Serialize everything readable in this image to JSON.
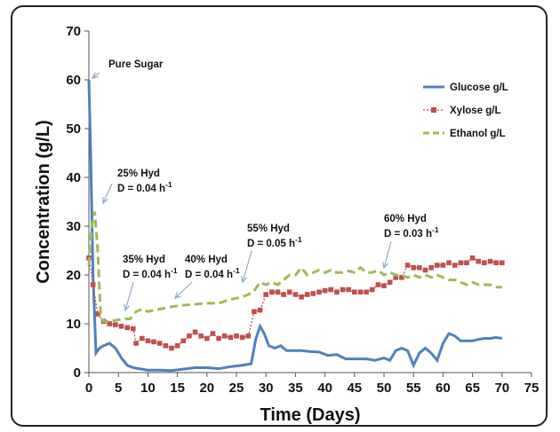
{
  "chart_data": {
    "type": "line",
    "xlabel": "Time (Days)",
    "ylabel": "Concentration (g/L)",
    "xlim": [
      0,
      75
    ],
    "ylim": [
      0,
      70
    ],
    "xticks": [
      "0",
      "5",
      "10",
      "15",
      "20",
      "25",
      "30",
      "35",
      "40",
      "45",
      "50",
      "55",
      "60",
      "65",
      "70",
      "75"
    ],
    "yticks": [
      "0",
      "10",
      "20",
      "30",
      "40",
      "50",
      "60",
      "70"
    ],
    "grid": false,
    "legend_position": "top-right",
    "series": [
      {
        "name": "Glucose g/L",
        "color": "#4f81bd",
        "style": "solid",
        "x": [
          0,
          0.3,
          0.7,
          1.2,
          1.8,
          2.5,
          3.5,
          4.5,
          5.5,
          6.5,
          7.5,
          8.5,
          10,
          12,
          14,
          16,
          18,
          20,
          22,
          24,
          26,
          27.5,
          28.3,
          29,
          29.7,
          30.5,
          31.5,
          32.5,
          33.5,
          34.5,
          36,
          37.5,
          39,
          40.5,
          42,
          43.5,
          45,
          47,
          48.5,
          50,
          51,
          52,
          53,
          54,
          55,
          56,
          57,
          58,
          59,
          60,
          61,
          62,
          63,
          64,
          65,
          66,
          67,
          68,
          69,
          70
        ],
        "y": [
          60,
          45,
          20,
          4,
          5,
          5.5,
          6,
          5,
          3,
          1.5,
          1,
          0.8,
          0.5,
          0.5,
          0.4,
          0.7,
          1,
          1,
          0.8,
          1.2,
          1.5,
          1.8,
          7,
          9.5,
          8,
          5.5,
          5,
          5.5,
          4.5,
          4.5,
          4.5,
          4.3,
          4.2,
          3.5,
          3.7,
          2.8,
          2.8,
          2.8,
          2.5,
          3,
          2.5,
          4.5,
          5,
          4.5,
          1.5,
          4,
          5,
          4,
          2.5,
          6,
          8,
          7.5,
          6.5,
          6.5,
          6.5,
          6.8,
          7,
          7,
          7.2,
          7
        ],
        "values_note": ""
      },
      {
        "name": "Xylose g/L",
        "color": "#c0504d",
        "style": "dotted-square",
        "x": [
          0,
          0.7,
          1.5,
          2.5,
          3.5,
          4.5,
          5.5,
          6.5,
          7.5,
          8,
          9,
          10,
          11,
          12,
          13,
          14,
          15,
          16,
          17,
          18,
          19,
          20,
          21,
          22,
          23,
          24,
          25,
          26,
          27,
          28,
          29,
          30,
          31,
          32,
          33,
          34,
          35,
          36,
          37,
          38,
          39,
          40,
          41,
          42,
          43,
          44,
          45,
          46,
          47,
          48,
          49,
          50,
          51,
          52,
          53,
          54,
          55,
          56,
          57,
          58,
          59,
          60,
          61,
          62,
          63,
          64,
          65,
          66,
          67,
          68,
          69,
          70
        ],
        "y": [
          23.5,
          18,
          12,
          10.5,
          10,
          9.8,
          9.5,
          9.2,
          9,
          6,
          7,
          6.5,
          6.3,
          6,
          5.5,
          5,
          5.5,
          6.5,
          7.5,
          8.3,
          7.5,
          7,
          8,
          7,
          7.5,
          7.2,
          7.5,
          7.2,
          7.5,
          12.5,
          12.8,
          16,
          16.5,
          16.5,
          16,
          16.5,
          16,
          15.5,
          16,
          16.2,
          16.5,
          16.8,
          17,
          16.5,
          17,
          17,
          16.5,
          16.5,
          16.5,
          17,
          18,
          17.8,
          18.5,
          19.5,
          19.5,
          22,
          21.5,
          21.5,
          21,
          21.5,
          22,
          22,
          22.5,
          22,
          22.5,
          22.5,
          23.5,
          22.8,
          22.5,
          22.8,
          22.5,
          22.5
        ],
        "values_note": ""
      },
      {
        "name": "Ethanol g/L",
        "color": "#9bbb59",
        "style": "dashed",
        "x": [
          0,
          0.5,
          1,
          1.5,
          2,
          2.5,
          3.5,
          5,
          6,
          7,
          8,
          9,
          10,
          12,
          14,
          16,
          18,
          20,
          22,
          24,
          26,
          27,
          28,
          29,
          30,
          31,
          32,
          33,
          34,
          35,
          36,
          37,
          38,
          39,
          40,
          41,
          42,
          43,
          44,
          45,
          46,
          47,
          48,
          49,
          50,
          51,
          52,
          53,
          54,
          55,
          56,
          57,
          58,
          59,
          60,
          61,
          62,
          63,
          64,
          65,
          66,
          67,
          68,
          69,
          70
        ],
        "y": [
          22,
          30,
          33,
          25,
          11.5,
          10.5,
          10.5,
          10.8,
          11,
          11,
          12.5,
          13,
          12.5,
          13,
          13.5,
          13.8,
          14,
          14.2,
          14.2,
          15,
          15.5,
          16,
          16.8,
          18.5,
          18,
          18.5,
          18,
          19,
          20,
          20,
          21.5,
          20,
          20.5,
          21,
          20.5,
          21,
          20.5,
          20.5,
          20.8,
          20.5,
          21.5,
          20.5,
          20.5,
          21,
          20,
          20.5,
          20,
          20,
          19.5,
          20,
          19.5,
          20,
          19.5,
          20,
          19.5,
          19,
          19,
          18.5,
          18,
          18.5,
          18,
          18,
          18,
          17.5,
          17.5
        ],
        "values_note": ""
      }
    ],
    "annotations": [
      {
        "lines": [
          "Pure Sugar"
        ],
        "point": [
          0.3,
          60
        ]
      },
      {
        "lines": [
          "25% Hyd",
          "D = 0.04 h-1"
        ],
        "point": [
          1.5,
          33
        ]
      },
      {
        "lines": [
          "35% Hyd",
          "D = 0.04 h-1"
        ],
        "point": [
          6,
          11
        ]
      },
      {
        "lines": [
          "40% Hyd",
          "D = 0.04 h-1"
        ],
        "point": [
          14,
          14
        ]
      },
      {
        "lines": [
          "55% Hyd",
          "D = 0.05 h-1"
        ],
        "point": [
          27,
          16
        ]
      },
      {
        "lines": [
          "60% Hyd",
          "D = 0.03 h-1"
        ],
        "point": [
          50,
          21
        ]
      }
    ]
  }
}
